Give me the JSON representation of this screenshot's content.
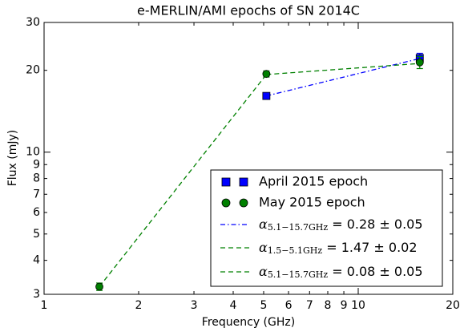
{
  "chart_data": {
    "type": "line",
    "title": "e-MERLIN/AMI epochs of SN 2014C",
    "x_label": "Frequency (GHz)",
    "y_label": "Flux (mJy)",
    "x_scale": "log",
    "y_scale": "log",
    "xlim": [
      1,
      20
    ],
    "ylim": [
      3,
      30
    ],
    "xticks": [
      1,
      2,
      3,
      4,
      5,
      6,
      7,
      8,
      9,
      10,
      20
    ],
    "yticks": [
      3,
      4,
      5,
      6,
      7,
      8,
      9,
      10,
      20,
      30
    ],
    "grid": false,
    "legend_position": "lower right",
    "series": [
      {
        "name": "April 2015 epoch",
        "color": "#0000ff",
        "marker": "square",
        "x": [
          5.1,
          15.7
        ],
        "values": [
          16.1,
          22.2
        ],
        "errors": [
          0.4,
          0.9
        ]
      },
      {
        "name": "May 2015 epoch",
        "color": "#008000",
        "marker": "circle",
        "x": [
          1.5,
          5.1,
          15.7
        ],
        "values": [
          3.2,
          19.4,
          21.4
        ],
        "errors": [
          0.1,
          0.5,
          1.1
        ]
      },
      {
        "name": "= 0.28 ± 0.05",
        "symbol": "α",
        "subscript": "5.1−15.7GHz",
        "color": "#0000ff",
        "linestyle": "dashdot",
        "x": [
          5.1,
          15.7
        ],
        "values": [
          16.1,
          22.1
        ]
      },
      {
        "name": "= 1.47 ± 0.02",
        "symbol": "α",
        "subscript": "1.5−5.1GHz",
        "color": "#008000",
        "linestyle": "dashed",
        "x": [
          1.5,
          5.1
        ],
        "values": [
          3.2,
          19.3
        ]
      },
      {
        "name": "= 0.08 ± 0.05",
        "symbol": "α",
        "subscript": "5.1−15.7GHz",
        "color": "#008000",
        "linestyle": "dashed",
        "x": [
          5.1,
          15.7
        ],
        "values": [
          19.3,
          21.2
        ]
      }
    ]
  }
}
